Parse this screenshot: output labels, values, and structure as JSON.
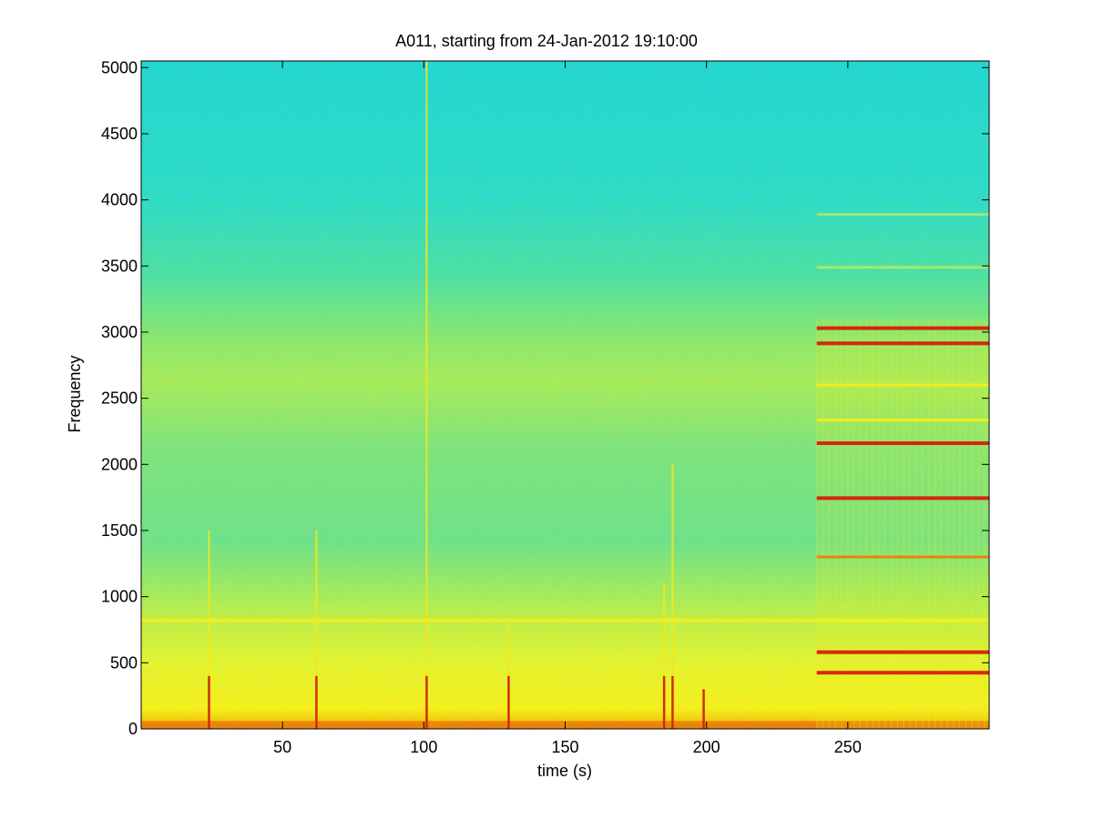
{
  "chart_data": {
    "type": "heatmap",
    "title": "A011, starting from 24-Jan-2012 19:10:00",
    "xlabel": "time (s)",
    "ylabel": "Frequency",
    "xlim": [
      0,
      300
    ],
    "ylim": [
      0,
      5050
    ],
    "x_ticks": [
      50,
      100,
      150,
      200,
      250
    ],
    "y_ticks": [
      0,
      500,
      1000,
      1500,
      2000,
      2500,
      3000,
      3500,
      4000,
      4500,
      5000
    ],
    "colormap": "jet",
    "background_band_levels": [
      {
        "freq_range": [
          3500,
          5050
        ],
        "level": "low (cyan)"
      },
      {
        "freq_range": [
          1000,
          3500
        ],
        "level": "medium (green-yellow)"
      },
      {
        "freq_range": [
          0,
          1000
        ],
        "level": "high (yellow)"
      },
      {
        "freq_range": [
          0,
          60
        ],
        "level": "very high (orange-red)"
      }
    ],
    "continuous_tones": [
      {
        "freq": 820,
        "time_range": [
          0,
          300
        ],
        "intensity": "yellow"
      }
    ],
    "tonal_lines_after_start": {
      "start_time": 239,
      "end_time": 300,
      "lines": [
        {
          "freq": 3030,
          "intensity": "red"
        },
        {
          "freq": 2915,
          "intensity": "red"
        },
        {
          "freq": 2600,
          "intensity": "yellow"
        },
        {
          "freq": 2335,
          "intensity": "yellow"
        },
        {
          "freq": 2160,
          "intensity": "red"
        },
        {
          "freq": 1745,
          "intensity": "red"
        },
        {
          "freq": 1300,
          "intensity": "orange"
        },
        {
          "freq": 580,
          "intensity": "red"
        },
        {
          "freq": 425,
          "intensity": "red"
        },
        {
          "freq": 3890,
          "intensity": "yellow-faint"
        },
        {
          "freq": 3490,
          "intensity": "yellow-faint"
        }
      ]
    },
    "transients": [
      {
        "time": 24,
        "max_freq": 1500
      },
      {
        "time": 62,
        "max_freq": 1500
      },
      {
        "time": 101,
        "max_freq": 5050
      },
      {
        "time": 130,
        "max_freq": 800
      },
      {
        "time": 185,
        "max_freq": 1100
      },
      {
        "time": 188,
        "max_freq": 2000
      },
      {
        "time": 199,
        "max_freq": 300
      }
    ],
    "grid": false
  }
}
